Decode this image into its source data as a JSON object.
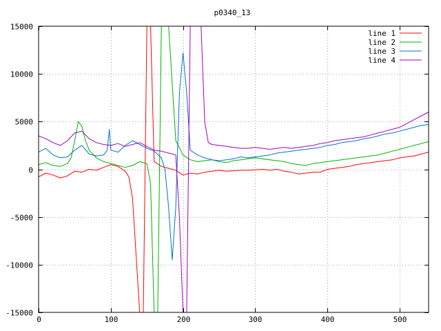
{
  "chart_data": {
    "type": "line",
    "title": "p0340_13",
    "xlabel": "",
    "ylabel": "",
    "xlim": [
      0,
      540
    ],
    "ylim": [
      -15000,
      15000
    ],
    "xticks": [
      0,
      100,
      200,
      300,
      400,
      500
    ],
    "yticks": [
      -15000,
      -10000,
      -5000,
      0,
      5000,
      10000,
      15000
    ],
    "grid": true,
    "legend_position": "top-right",
    "series": [
      {
        "name": "line 1",
        "color": "#ff0000",
        "x": [
          0,
          10,
          20,
          30,
          40,
          50,
          60,
          70,
          80,
          90,
          100,
          110,
          120,
          125,
          130,
          135,
          140,
          145,
          150,
          155,
          160,
          170,
          180,
          190,
          200,
          210,
          220,
          230,
          240,
          250,
          260,
          270,
          280,
          290,
          300,
          310,
          320,
          330,
          340,
          350,
          360,
          370,
          380,
          390,
          400,
          410,
          420,
          430,
          440,
          450,
          460,
          470,
          480,
          490,
          500,
          510,
          520,
          530,
          540
        ],
        "y": [
          -800,
          -400,
          -600,
          -900,
          -700,
          -200,
          -300,
          0,
          -100,
          200,
          500,
          300,
          -200,
          -800,
          -3000,
          -9000,
          -15000,
          -15000,
          15000,
          15000,
          800,
          300,
          100,
          -100,
          -600,
          -400,
          -500,
          -300,
          -200,
          -100,
          -200,
          -150,
          -100,
          -100,
          -50,
          0,
          -100,
          0,
          -200,
          -300,
          -500,
          -400,
          -300,
          -300,
          0,
          100,
          200,
          300,
          500,
          600,
          700,
          800,
          900,
          1000,
          1200,
          1300,
          1400,
          1600,
          1800
        ]
      },
      {
        "name": "line 2",
        "color": "#00b000",
        "x": [
          0,
          10,
          20,
          30,
          40,
          45,
          50,
          55,
          60,
          65,
          70,
          80,
          90,
          100,
          110,
          120,
          130,
          140,
          150,
          155,
          160,
          165,
          170,
          175,
          180,
          185,
          190,
          200,
          210,
          220,
          230,
          240,
          250,
          260,
          270,
          280,
          290,
          300,
          310,
          320,
          330,
          340,
          350,
          360,
          370,
          380,
          390,
          400,
          410,
          420,
          430,
          440,
          450,
          460,
          470,
          480,
          490,
          500,
          510,
          520,
          530,
          540
        ],
        "y": [
          500,
          700,
          400,
          300,
          600,
          1200,
          3000,
          5000,
          4500,
          3000,
          2000,
          1200,
          800,
          600,
          400,
          200,
          400,
          800,
          600,
          -1500,
          -15000,
          -15000,
          15000,
          15000,
          15000,
          9000,
          3000,
          1500,
          1000,
          800,
          900,
          1000,
          800,
          700,
          900,
          1000,
          1100,
          1200,
          1100,
          1000,
          900,
          800,
          600,
          500,
          400,
          600,
          700,
          800,
          900,
          1000,
          1100,
          1200,
          1300,
          1400,
          1500,
          1700,
          1900,
          2100,
          2300,
          2500,
          2700,
          2900
        ]
      },
      {
        "name": "line 3",
        "color": "#0070d0",
        "x": [
          0,
          10,
          20,
          30,
          40,
          50,
          60,
          70,
          80,
          90,
          95,
          98,
          100,
          110,
          120,
          130,
          140,
          150,
          160,
          170,
          175,
          180,
          185,
          190,
          195,
          200,
          205,
          210,
          220,
          230,
          240,
          250,
          260,
          270,
          280,
          290,
          300,
          310,
          320,
          330,
          340,
          350,
          360,
          370,
          380,
          390,
          400,
          410,
          420,
          430,
          440,
          450,
          460,
          470,
          480,
          490,
          500,
          510,
          520,
          530,
          540
        ],
        "y": [
          1800,
          2200,
          1500,
          1200,
          1300,
          2000,
          2500,
          1600,
          1400,
          1500,
          2000,
          4200,
          2000,
          1800,
          2500,
          3000,
          2600,
          2200,
          1900,
          1200,
          0,
          -4000,
          -9500,
          -4000,
          8000,
          12200,
          8000,
          2000,
          1500,
          1200,
          1000,
          900,
          1000,
          1100,
          1300,
          1200,
          1300,
          1400,
          1500,
          1700,
          1800,
          1900,
          2000,
          2100,
          2200,
          2300,
          2500,
          2600,
          2800,
          2900,
          3000,
          3200,
          3300,
          3500,
          3700,
          3800,
          4000,
          4200,
          4400,
          4600,
          4700
        ]
      },
      {
        "name": "line 4",
        "color": "#a000c0",
        "x": [
          0,
          10,
          20,
          30,
          40,
          50,
          60,
          70,
          80,
          90,
          100,
          110,
          120,
          130,
          140,
          150,
          160,
          170,
          180,
          190,
          195,
          200,
          205,
          210,
          215,
          220,
          225,
          230,
          235,
          240,
          250,
          260,
          270,
          280,
          290,
          300,
          310,
          320,
          330,
          340,
          350,
          360,
          370,
          380,
          390,
          400,
          410,
          420,
          430,
          440,
          450,
          460,
          470,
          480,
          490,
          500,
          510,
          520,
          530,
          540
        ],
        "y": [
          3500,
          3200,
          2800,
          2500,
          3000,
          3800,
          4000,
          3200,
          2800,
          2600,
          2500,
          2700,
          2400,
          2600,
          2800,
          2400,
          2000,
          1900,
          1700,
          1500,
          -5000,
          -15000,
          -15000,
          15000,
          15000,
          15000,
          15000,
          5000,
          2800,
          2600,
          2500,
          2400,
          2300,
          2200,
          2200,
          2300,
          2200,
          2100,
          2200,
          2300,
          2200,
          2300,
          2400,
          2500,
          2700,
          2800,
          3000,
          3100,
          3200,
          3300,
          3400,
          3600,
          3800,
          4000,
          4200,
          4400,
          4800,
          5200,
          5600,
          6000
        ]
      }
    ]
  }
}
